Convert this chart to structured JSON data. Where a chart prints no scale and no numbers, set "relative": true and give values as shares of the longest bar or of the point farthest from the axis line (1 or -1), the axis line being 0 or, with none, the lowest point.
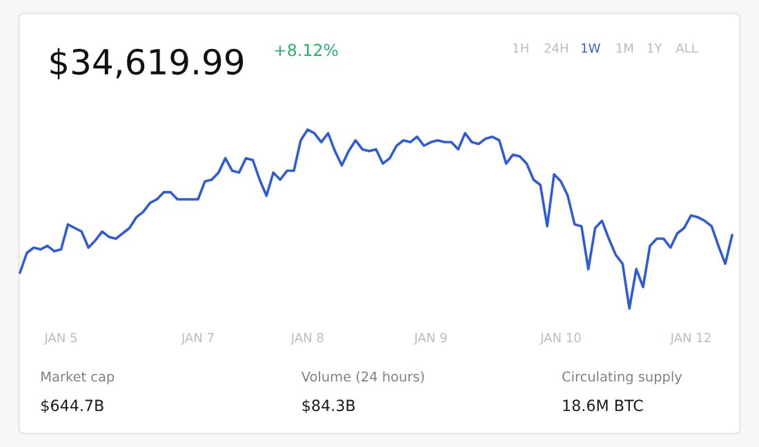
{
  "chart_data": {
    "type": "line",
    "title": "$34,619.99",
    "subtitle": "+8.12%",
    "relative": true,
    "categories": [
      null,
      null,
      null,
      null,
      null,
      null,
      "JAN 5",
      null,
      null,
      null,
      null,
      null,
      null,
      null,
      null,
      null,
      null,
      null,
      null,
      null,
      null,
      null,
      null,
      null,
      null,
      null,
      "JAN 7",
      null,
      null,
      null,
      null,
      null,
      null,
      null,
      null,
      null,
      null,
      null,
      null,
      null,
      null,
      null,
      "JAN 8",
      null,
      null,
      null,
      null,
      null,
      null,
      null,
      null,
      null,
      null,
      null,
      null,
      null,
      null,
      null,
      null,
      null,
      "JAN 9",
      null,
      null,
      null,
      null,
      null,
      null,
      null,
      null,
      null,
      null,
      null,
      null,
      null,
      null,
      null,
      null,
      null,
      null,
      "JAN 10",
      null,
      null,
      null,
      null,
      null,
      null,
      null,
      null,
      null,
      null,
      null,
      null,
      null,
      null,
      null,
      null,
      null,
      null,
      "JAN 12",
      null,
      null,
      null,
      null,
      null,
      null
    ],
    "series": [
      {
        "color": "#2f5bd8",
        "values": [
          0.2,
          0.31,
          0.34,
          0.33,
          0.35,
          0.32,
          0.33,
          0.47,
          0.45,
          0.43,
          0.34,
          0.38,
          0.43,
          0.4,
          0.39,
          0.42,
          0.45,
          0.51,
          0.54,
          0.59,
          0.61,
          0.65,
          0.65,
          0.61,
          0.61,
          0.61,
          0.61,
          0.71,
          0.72,
          0.76,
          0.84,
          0.77,
          0.76,
          0.84,
          0.83,
          0.72,
          0.63,
          0.76,
          0.72,
          0.77,
          0.77,
          0.94,
          1,
          0.98,
          0.93,
          0.98,
          0.88,
          0.8,
          0.88,
          0.94,
          0.89,
          0.88,
          0.89,
          0.81,
          0.84,
          0.91,
          0.94,
          0.93,
          0.96,
          0.91,
          0.93,
          0.94,
          0.93,
          0.93,
          0.89,
          0.98,
          0.93,
          0.92,
          0.95,
          0.96,
          0.94,
          0.81,
          0.86,
          0.85,
          0.81,
          0.72,
          0.69,
          0.46,
          0.75,
          0.71,
          0.63,
          0.47,
          0.46,
          0.22,
          0.45,
          0.49,
          0.39,
          0.3,
          0.25,
          0,
          0.22,
          0.12,
          0.35,
          0.39,
          0.39,
          0.34,
          0.42,
          0.45,
          0.52,
          0.51,
          0.49,
          0.46,
          0.35,
          0.25,
          0.41
        ]
      }
    ],
    "annotations": [
      "1H",
      "24H",
      "1W",
      "1M",
      "1Y",
      "ALL",
      "Market cap",
      "$644.7B",
      "Volume (24 hours)",
      "$84.3B",
      "Circulating supply",
      "18.6M BTC"
    ]
  }
}
